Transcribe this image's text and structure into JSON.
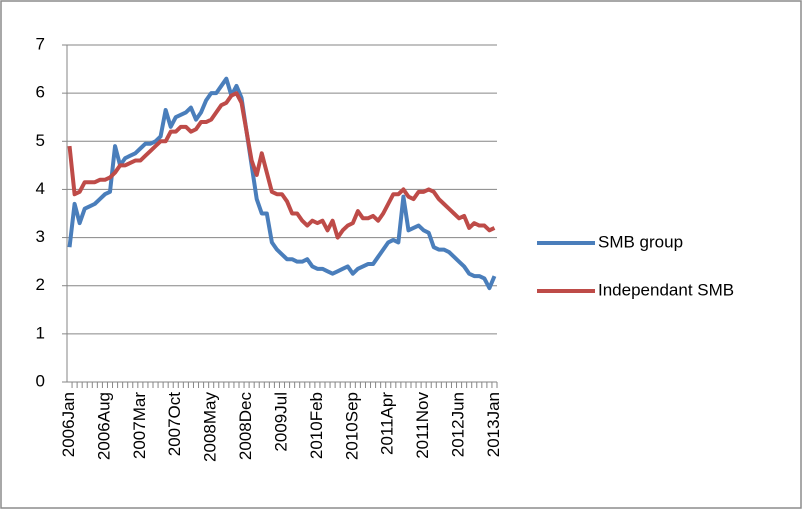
{
  "chart_data": {
    "type": "line",
    "categories": [
      "2006Jan",
      null,
      null,
      null,
      null,
      null,
      null,
      "2006Aug",
      null,
      null,
      null,
      null,
      null,
      null,
      "2007Mar",
      null,
      null,
      null,
      null,
      null,
      null,
      "2007Oct",
      null,
      null,
      null,
      null,
      null,
      null,
      "2008May",
      null,
      null,
      null,
      null,
      null,
      null,
      "2008Dec",
      null,
      null,
      null,
      null,
      null,
      null,
      "2009Jul",
      null,
      null,
      null,
      null,
      null,
      null,
      "2010Feb",
      null,
      null,
      null,
      null,
      null,
      null,
      "2010Sep",
      null,
      null,
      null,
      null,
      null,
      null,
      "2011Apr",
      null,
      null,
      null,
      null,
      null,
      null,
      "2011Nov",
      null,
      null,
      null,
      null,
      null,
      null,
      "2012Jun",
      null,
      null,
      null,
      null,
      null,
      null,
      "2013Jan"
    ],
    "series": [
      {
        "name": "SMB group",
        "color": "#4a7ebb",
        "values": [
          2.8,
          3.7,
          3.3,
          3.6,
          3.65,
          3.7,
          3.8,
          3.9,
          3.95,
          4.9,
          4.5,
          4.65,
          4.7,
          4.75,
          4.85,
          4.95,
          4.95,
          5.0,
          5.1,
          5.65,
          5.3,
          5.5,
          5.55,
          5.6,
          5.7,
          5.45,
          5.6,
          5.85,
          6.0,
          6.0,
          6.15,
          6.3,
          5.95,
          6.15,
          5.9,
          5.2,
          4.5,
          3.8,
          3.5,
          3.5,
          2.9,
          2.75,
          2.65,
          2.55,
          2.55,
          2.5,
          2.5,
          2.55,
          2.4,
          2.35,
          2.35,
          2.3,
          2.25,
          2.3,
          2.35,
          2.4,
          2.25,
          2.35,
          2.4,
          2.45,
          2.45,
          2.6,
          2.75,
          2.9,
          2.95,
          2.9,
          3.85,
          3.15,
          3.2,
          3.25,
          3.15,
          3.1,
          2.8,
          2.75,
          2.75,
          2.7,
          2.6,
          2.5,
          2.4,
          2.25,
          2.2,
          2.2,
          2.15,
          1.95,
          2.2
        ]
      },
      {
        "name": "Independant SMB",
        "color": "#be4b48",
        "values": [
          4.9,
          3.9,
          3.95,
          4.15,
          4.15,
          4.15,
          4.2,
          4.2,
          4.25,
          4.35,
          4.5,
          4.5,
          4.55,
          4.6,
          4.6,
          4.7,
          4.8,
          4.9,
          5.0,
          5.0,
          5.2,
          5.2,
          5.3,
          5.3,
          5.2,
          5.25,
          5.4,
          5.4,
          5.45,
          5.6,
          5.75,
          5.8,
          5.95,
          6.0,
          5.8,
          5.2,
          4.6,
          4.3,
          4.75,
          4.35,
          3.95,
          3.9,
          3.9,
          3.75,
          3.5,
          3.5,
          3.35,
          3.25,
          3.35,
          3.3,
          3.35,
          3.15,
          3.35,
          3.0,
          3.15,
          3.25,
          3.3,
          3.55,
          3.4,
          3.4,
          3.45,
          3.35,
          3.5,
          3.7,
          3.9,
          3.9,
          4.0,
          3.85,
          3.8,
          3.95,
          3.95,
          4.0,
          3.95,
          3.8,
          3.7,
          3.6,
          3.5,
          3.4,
          3.45,
          3.2,
          3.3,
          3.25,
          3.25,
          3.15,
          3.2
        ]
      }
    ],
    "ylim": [
      0,
      7
    ],
    "yticks": [
      0,
      1,
      2,
      3,
      4,
      5,
      6,
      7
    ],
    "grid": true,
    "legend": "right"
  }
}
